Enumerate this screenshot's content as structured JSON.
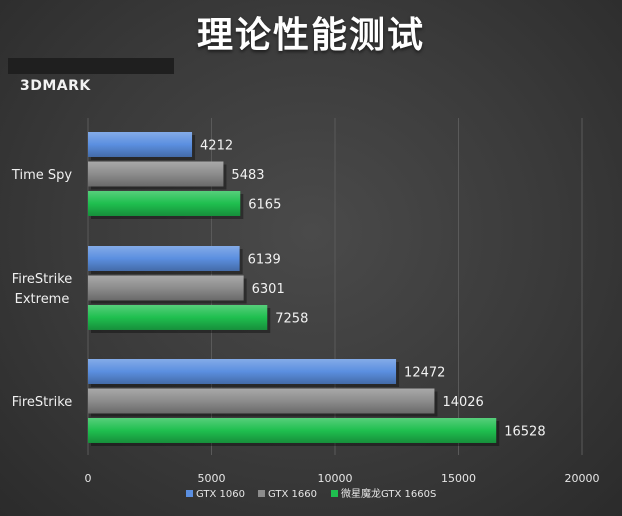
{
  "title": "理论性能测试",
  "subtitle": "3DMARK",
  "colors": {
    "GTX 1060": "#5b8fe0",
    "GTX 1660": "#8c8c8c",
    "微星魔龙GTX 1660S": "#1fbf4f",
    "grid": "#5a5a5a",
    "background": "#3a3a3a"
  },
  "chart_data": {
    "type": "bar",
    "orientation": "horizontal",
    "categories": [
      "Time Spy",
      "FireStrike Extreme",
      "FireStrike"
    ],
    "category_lines": [
      [
        "Time Spy"
      ],
      [
        "FireStrike",
        "Extreme"
      ],
      [
        "FireStrike"
      ]
    ],
    "series": [
      {
        "name": "GTX 1060",
        "values": [
          4212,
          6139,
          12472
        ]
      },
      {
        "name": "GTX 1660",
        "values": [
          5483,
          6301,
          14026
        ]
      },
      {
        "name": "微星魔龙GTX 1660S",
        "values": [
          6165,
          7258,
          16528
        ]
      }
    ],
    "xlim": [
      0,
      20000
    ],
    "xticks": [
      "0",
      "5000",
      "10000",
      "15000",
      "20000"
    ],
    "xtick_values": [
      0,
      5000,
      10000,
      15000,
      20000
    ],
    "grid": "vertical",
    "data_labels": true,
    "legend": "bottom"
  }
}
